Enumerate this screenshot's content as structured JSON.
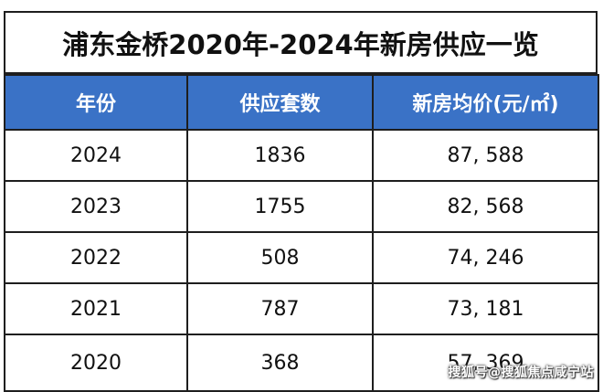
{
  "title": "浦东金桥2020年-2024年新房供应一览",
  "table": {
    "headers": [
      "年份",
      "供应套数",
      "新房均价(元/㎡)"
    ],
    "rows": [
      [
        "2024",
        "1836",
        "87, 588"
      ],
      [
        "2023",
        "1755",
        "82, 568"
      ],
      [
        "2022",
        "508",
        "74, 246"
      ],
      [
        "2021",
        "787",
        "73, 181"
      ],
      [
        "2020",
        "368",
        "57, 369"
      ]
    ]
  },
  "watermark": "搜狐号@搜狐焦点咸宁站",
  "colors": {
    "header_bg": "#3a72c6",
    "header_text": "#ffffff",
    "border": "#1e1e1e"
  }
}
